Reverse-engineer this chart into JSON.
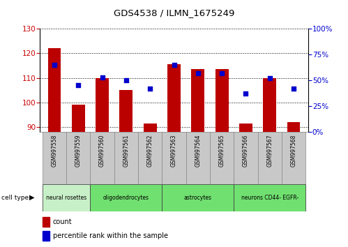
{
  "title": "GDS4538 / ILMN_1675249",
  "samples": [
    "GSM997558",
    "GSM997559",
    "GSM997560",
    "GSM997561",
    "GSM997562",
    "GSM997563",
    "GSM997564",
    "GSM997565",
    "GSM997566",
    "GSM997567",
    "GSM997568"
  ],
  "counts": [
    122,
    99,
    110,
    105,
    91.5,
    115.5,
    113.5,
    113.5,
    91.5,
    110,
    92
  ],
  "percentile_ranks": [
    65,
    45,
    53,
    50,
    42,
    65,
    57,
    57,
    37,
    52,
    42
  ],
  "ylim_left": [
    88,
    130
  ],
  "ylim_right": [
    0,
    100
  ],
  "yticks_left": [
    90,
    100,
    110,
    120,
    130
  ],
  "yticks_right": [
    0,
    25,
    50,
    75,
    100
  ],
  "bar_color": "#bb0000",
  "dot_color": "#0000cc",
  "background_color": "#ffffff",
  "tick_box_color": "#c8c8c8",
  "cell_groups": [
    {
      "label": "neural rosettes",
      "start": 0,
      "end": 2,
      "color": "#c8f0c8"
    },
    {
      "label": "oligodendrocytes",
      "start": 2,
      "end": 5,
      "color": "#70e070"
    },
    {
      "label": "astrocytes",
      "start": 5,
      "end": 8,
      "color": "#70e070"
    },
    {
      "label": "neurons CD44- EGFR-",
      "start": 8,
      "end": 11,
      "color": "#70e070"
    }
  ],
  "left_axis_color": "#cc0000",
  "right_axis_color": "#0000cc"
}
